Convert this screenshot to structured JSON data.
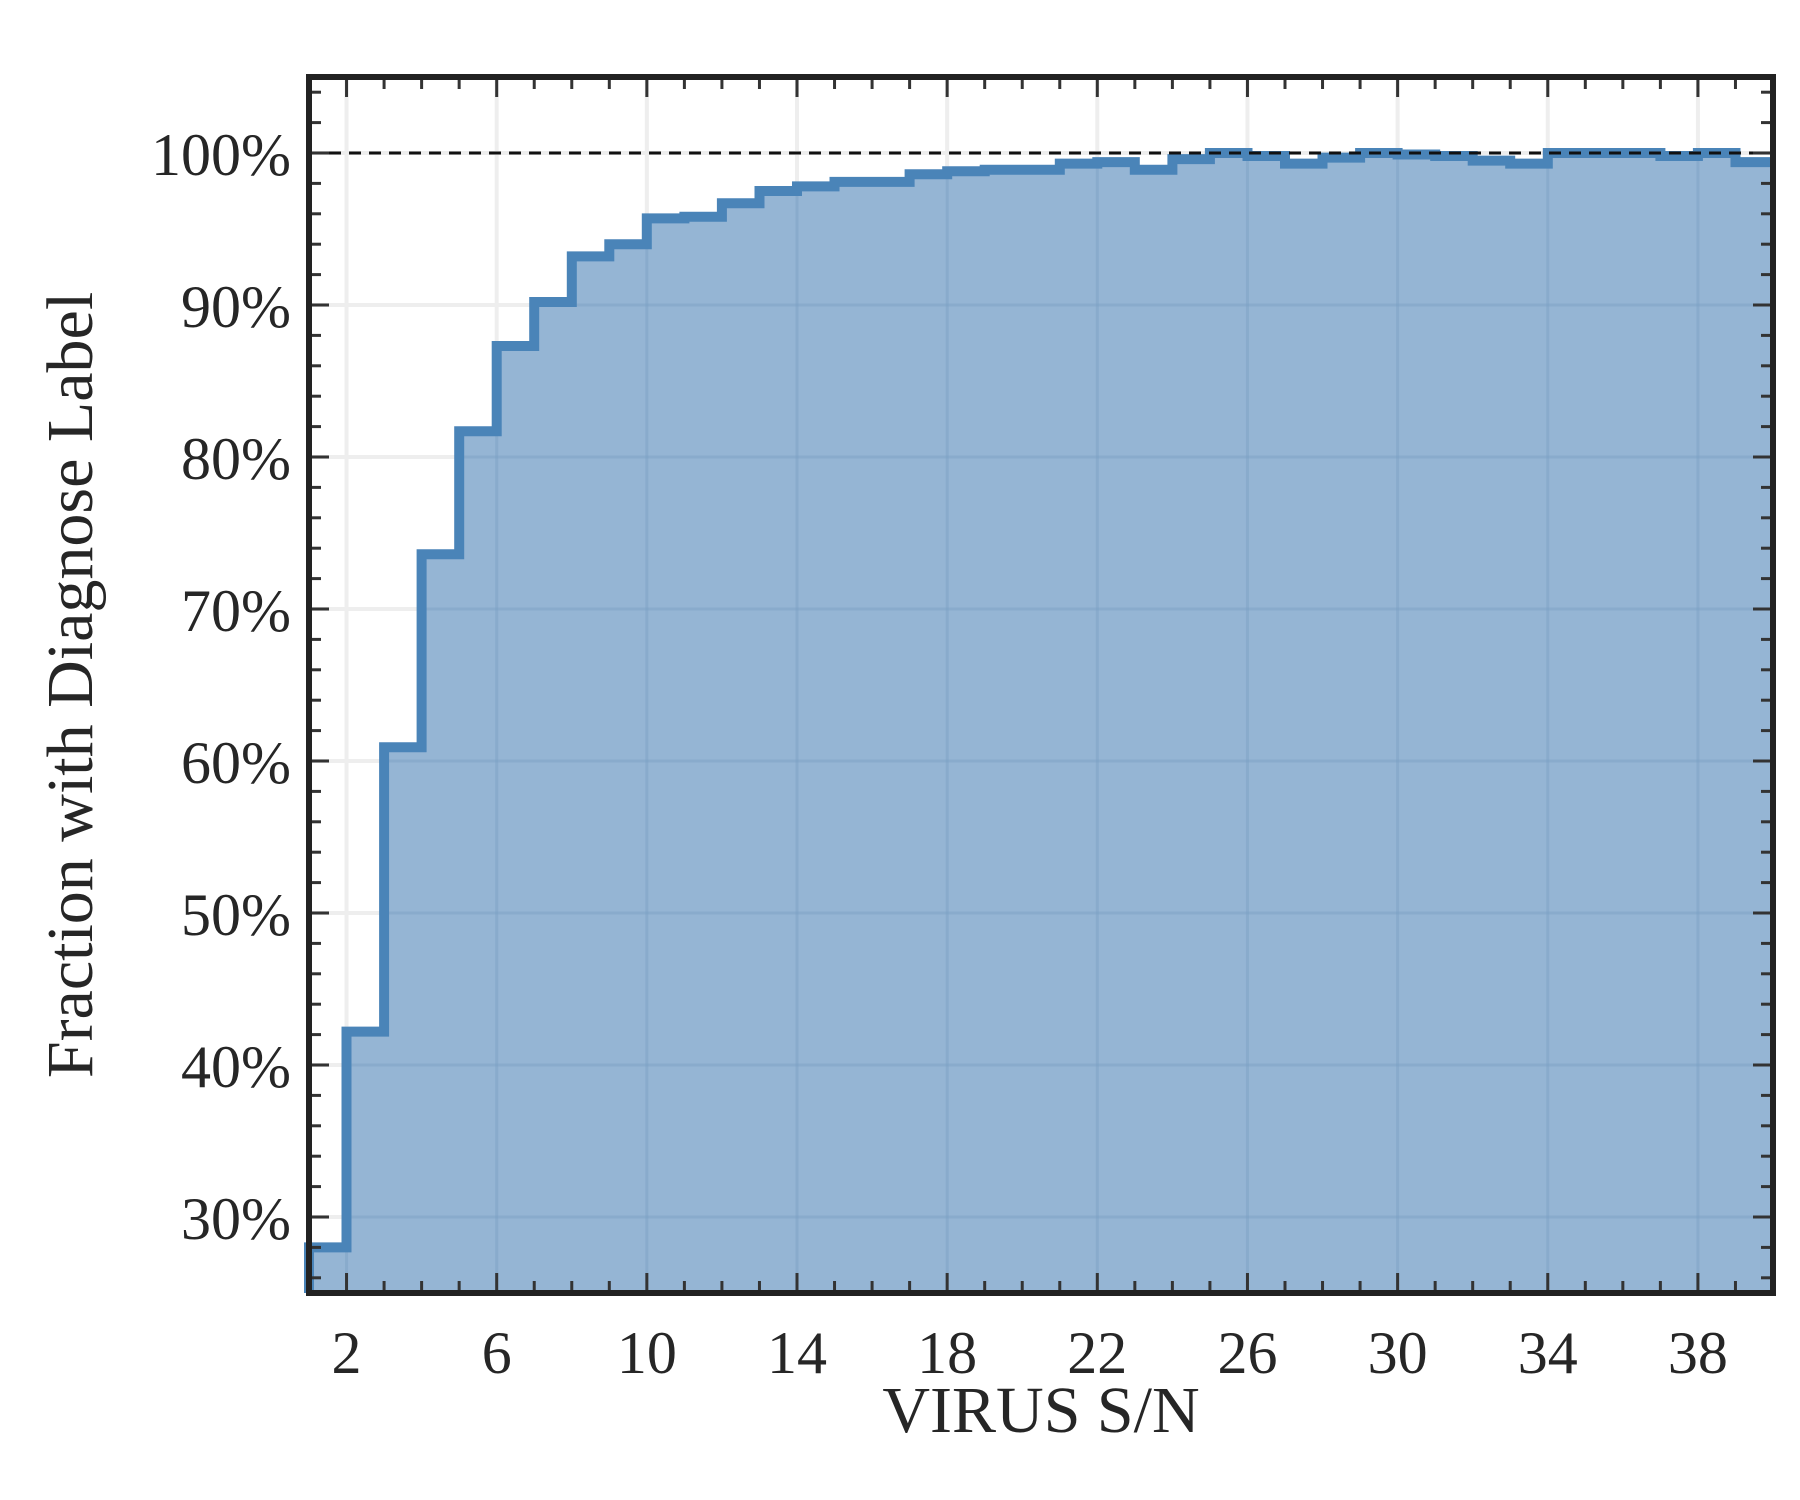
{
  "chart_data": {
    "type": "area",
    "step": "post",
    "title": "",
    "xlabel": "VIRUS S/N",
    "ylabel": "Fraction with Diagnose Label",
    "xlim": [
      1,
      40
    ],
    "ylim": [
      25,
      105
    ],
    "xticks": [
      2,
      6,
      10,
      14,
      18,
      22,
      26,
      30,
      34,
      38
    ],
    "xtick_labels": [
      "2",
      "6",
      "10",
      "14",
      "18",
      "22",
      "26",
      "30",
      "34",
      "38"
    ],
    "yticks": [
      30,
      40,
      50,
      60,
      70,
      80,
      90,
      100
    ],
    "ytick_labels": [
      "30%",
      "40%",
      "50%",
      "60%",
      "70%",
      "80%",
      "90%",
      "100%"
    ],
    "grid": true,
    "reference_line": {
      "y": 100,
      "style": "dashed"
    },
    "colors": {
      "line": "#4a84b8",
      "fill": "#8fb1d2",
      "frame": "#222222",
      "grid": "#eeeeee"
    },
    "series": [
      {
        "x": [
          1,
          2,
          3,
          4,
          5,
          6,
          7,
          8,
          9,
          10,
          11,
          12,
          13,
          14,
          15,
          16,
          17,
          18,
          19,
          20,
          21,
          22,
          23,
          24,
          25,
          26,
          27,
          28,
          29,
          30,
          31,
          32,
          33,
          34,
          35,
          36,
          37,
          38,
          39
        ],
        "y": [
          28.0,
          42.2,
          60.9,
          73.6,
          81.7,
          87.3,
          90.2,
          93.2,
          94.0,
          95.7,
          95.8,
          96.7,
          97.5,
          97.8,
          98.1,
          98.1,
          98.6,
          98.8,
          98.9,
          98.9,
          99.3,
          99.4,
          98.9,
          99.6,
          100.0,
          99.8,
          99.3,
          99.7,
          100.0,
          99.9,
          99.8,
          99.5,
          99.3,
          100.0,
          100.0,
          100.0,
          99.8,
          100.0,
          99.4
        ]
      }
    ]
  }
}
